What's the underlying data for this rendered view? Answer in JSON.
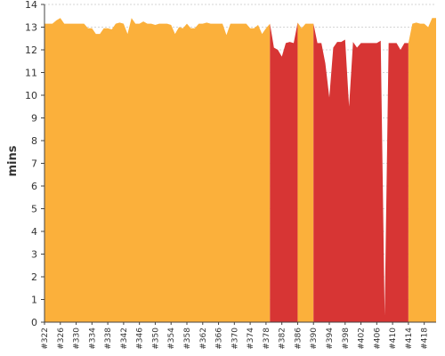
{
  "chart_data": {
    "type": "area",
    "title": "",
    "xlabel": "",
    "ylabel": "mins",
    "ylim": [
      0,
      14
    ],
    "yticks": [
      0,
      1,
      2,
      3,
      4,
      5,
      6,
      7,
      8,
      9,
      10,
      11,
      12,
      13,
      14
    ],
    "grid": true,
    "xtick_labels": [
      "#322",
      "#326",
      "#330",
      "#334",
      "#338",
      "#342",
      "#346",
      "#350",
      "#354",
      "#358",
      "#362",
      "#366",
      "#370",
      "#374",
      "#378",
      "#382",
      "#386",
      "#390",
      "#394",
      "#398",
      "#402",
      "#406",
      "#410",
      "#414",
      "#418"
    ],
    "x": [
      322,
      323,
      324,
      325,
      326,
      327,
      328,
      329,
      330,
      331,
      332,
      333,
      334,
      335,
      336,
      337,
      338,
      339,
      340,
      341,
      342,
      343,
      344,
      345,
      346,
      347,
      348,
      349,
      350,
      351,
      352,
      353,
      354,
      355,
      356,
      357,
      358,
      359,
      360,
      361,
      362,
      363,
      364,
      365,
      366,
      367,
      368,
      369,
      370,
      371,
      372,
      373,
      374,
      375,
      376,
      377,
      378,
      379,
      380,
      381,
      382,
      383,
      384,
      385,
      386,
      387,
      388,
      389,
      390,
      391,
      392,
      393,
      394,
      395,
      396,
      397,
      398,
      399,
      400,
      401,
      402,
      403,
      404,
      405,
      406,
      407,
      408,
      409,
      410,
      411,
      412,
      413,
      414,
      415,
      416,
      417,
      418,
      419,
      420,
      421
    ],
    "values": [
      13.15,
      13.15,
      13.15,
      13.3,
      13.4,
      13.15,
      13.15,
      13.15,
      13.15,
      13.15,
      13.15,
      12.95,
      12.95,
      12.7,
      12.7,
      12.95,
      12.95,
      12.9,
      13.15,
      13.2,
      13.15,
      12.7,
      13.4,
      13.15,
      13.15,
      13.25,
      13.15,
      13.15,
      13.1,
      13.15,
      13.15,
      13.15,
      13.1,
      12.7,
      13.0,
      12.95,
      13.15,
      12.95,
      12.95,
      13.15,
      13.15,
      13.2,
      13.15,
      13.15,
      13.15,
      13.15,
      12.65,
      13.15,
      13.15,
      13.15,
      13.15,
      13.15,
      12.95,
      12.95,
      13.1,
      12.7,
      12.95,
      13.15,
      12.1,
      12.0,
      11.7,
      12.3,
      12.35,
      12.3,
      13.2,
      12.95,
      13.15,
      13.15,
      13.15,
      12.3,
      12.3,
      11.4,
      9.9,
      12.1,
      12.35,
      12.35,
      12.45,
      9.5,
      12.35,
      12.1,
      12.3,
      12.3,
      12.3,
      12.3,
      12.3,
      12.4,
      0.3,
      12.3,
      12.3,
      12.3,
      12.0,
      12.3,
      12.3,
      13.15,
      13.2,
      13.15,
      13.15,
      13.0,
      13.4,
      13.4
    ],
    "status": [
      "ok",
      "ok",
      "ok",
      "ok",
      "ok",
      "ok",
      "ok",
      "ok",
      "ok",
      "ok",
      "ok",
      "ok",
      "ok",
      "ok",
      "ok",
      "ok",
      "ok",
      "ok",
      "ok",
      "ok",
      "ok",
      "ok",
      "ok",
      "ok",
      "ok",
      "ok",
      "ok",
      "ok",
      "ok",
      "ok",
      "ok",
      "ok",
      "ok",
      "ok",
      "ok",
      "ok",
      "ok",
      "ok",
      "ok",
      "ok",
      "ok",
      "ok",
      "ok",
      "ok",
      "ok",
      "ok",
      "ok",
      "ok",
      "ok",
      "ok",
      "ok",
      "ok",
      "ok",
      "ok",
      "ok",
      "ok",
      "ok",
      "fail",
      "fail",
      "fail",
      "fail",
      "fail",
      "fail",
      "fail",
      "ok",
      "ok",
      "ok",
      "ok",
      "fail",
      "fail",
      "fail",
      "fail",
      "fail",
      "fail",
      "fail",
      "fail",
      "fail",
      "fail",
      "fail",
      "fail",
      "fail",
      "fail",
      "fail",
      "fail",
      "fail",
      "fail",
      "fail",
      "fail",
      "fail",
      "fail",
      "fail",
      "fail",
      "ok",
      "ok",
      "ok",
      "ok",
      "ok",
      "ok",
      "ok",
      "ok"
    ],
    "colors": {
      "ok": "#FBB03B",
      "fail": "#D73534",
      "grid": "#C8C8C8",
      "axis": "#444444"
    }
  }
}
